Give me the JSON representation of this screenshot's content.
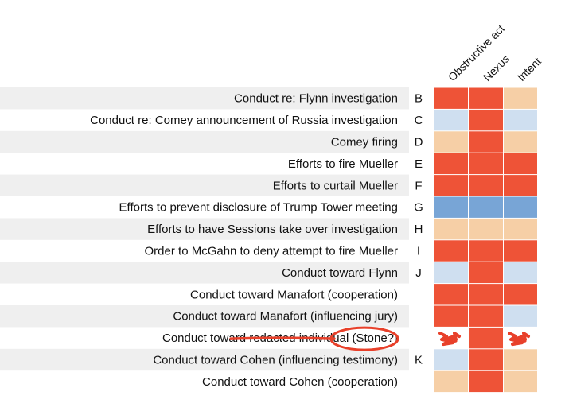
{
  "chart_data": {
    "type": "heatmap",
    "title": "",
    "columns": [
      "Obstructive act",
      "Nexus",
      "Intent"
    ],
    "colors": {
      "strong": "#ee5337",
      "weak": "#f6cfa6",
      "light": "#cfdff0",
      "blue": "#78a5d6",
      "redacted": "#ffffff",
      "none": "#ffffff",
      "band": "#efefef",
      "scribble": "#e8402a"
    },
    "rows": [
      {
        "label": "Conduct re: Flynn investigation",
        "letter": "B",
        "cells": [
          "strong",
          "strong",
          "weak"
        ]
      },
      {
        "label": "Conduct re: Comey announcement of Russia investigation",
        "letter": "C",
        "cells": [
          "light",
          "strong",
          "light"
        ]
      },
      {
        "label": "Comey firing",
        "letter": "D",
        "cells": [
          "weak",
          "strong",
          "weak"
        ]
      },
      {
        "label": "Efforts to fire Mueller",
        "letter": "E",
        "cells": [
          "strong",
          "strong",
          "strong"
        ]
      },
      {
        "label": "Efforts to curtail Mueller",
        "letter": "F",
        "cells": [
          "strong",
          "strong",
          "strong"
        ]
      },
      {
        "label": "Efforts to prevent disclosure of Trump Tower meeting",
        "letter": "G",
        "cells": [
          "blue",
          "blue",
          "blue"
        ]
      },
      {
        "label": "Efforts to have Sessions take over investigation",
        "letter": "H",
        "cells": [
          "weak",
          "weak",
          "weak"
        ]
      },
      {
        "label": "Order to McGahn to deny attempt to fire Mueller",
        "letter": "I",
        "cells": [
          "strong",
          "strong",
          "strong"
        ]
      },
      {
        "label": "Conduct toward Flynn",
        "letter": "J",
        "cells": [
          "light",
          "strong",
          "light"
        ]
      },
      {
        "label": "Conduct toward Manafort (cooperation)",
        "letter": "",
        "cells": [
          "strong",
          "strong",
          "strong"
        ]
      },
      {
        "label": "Conduct toward Manafort (influencing jury)",
        "letter": "",
        "cells": [
          "strong",
          "strong",
          "light"
        ]
      },
      {
        "label": "Conduct toward redacted individual (Stone?)",
        "letter": "",
        "cells": [
          "redacted",
          "strong",
          "redacted"
        ]
      },
      {
        "label": "Conduct toward Cohen (influencing testimony)",
        "letter": "K",
        "cells": [
          "light",
          "strong",
          "weak"
        ]
      },
      {
        "label": "Conduct toward Cohen (cooperation)",
        "letter": "",
        "cells": [
          "weak",
          "strong",
          "weak"
        ]
      }
    ],
    "grid": false,
    "legend": "none"
  }
}
